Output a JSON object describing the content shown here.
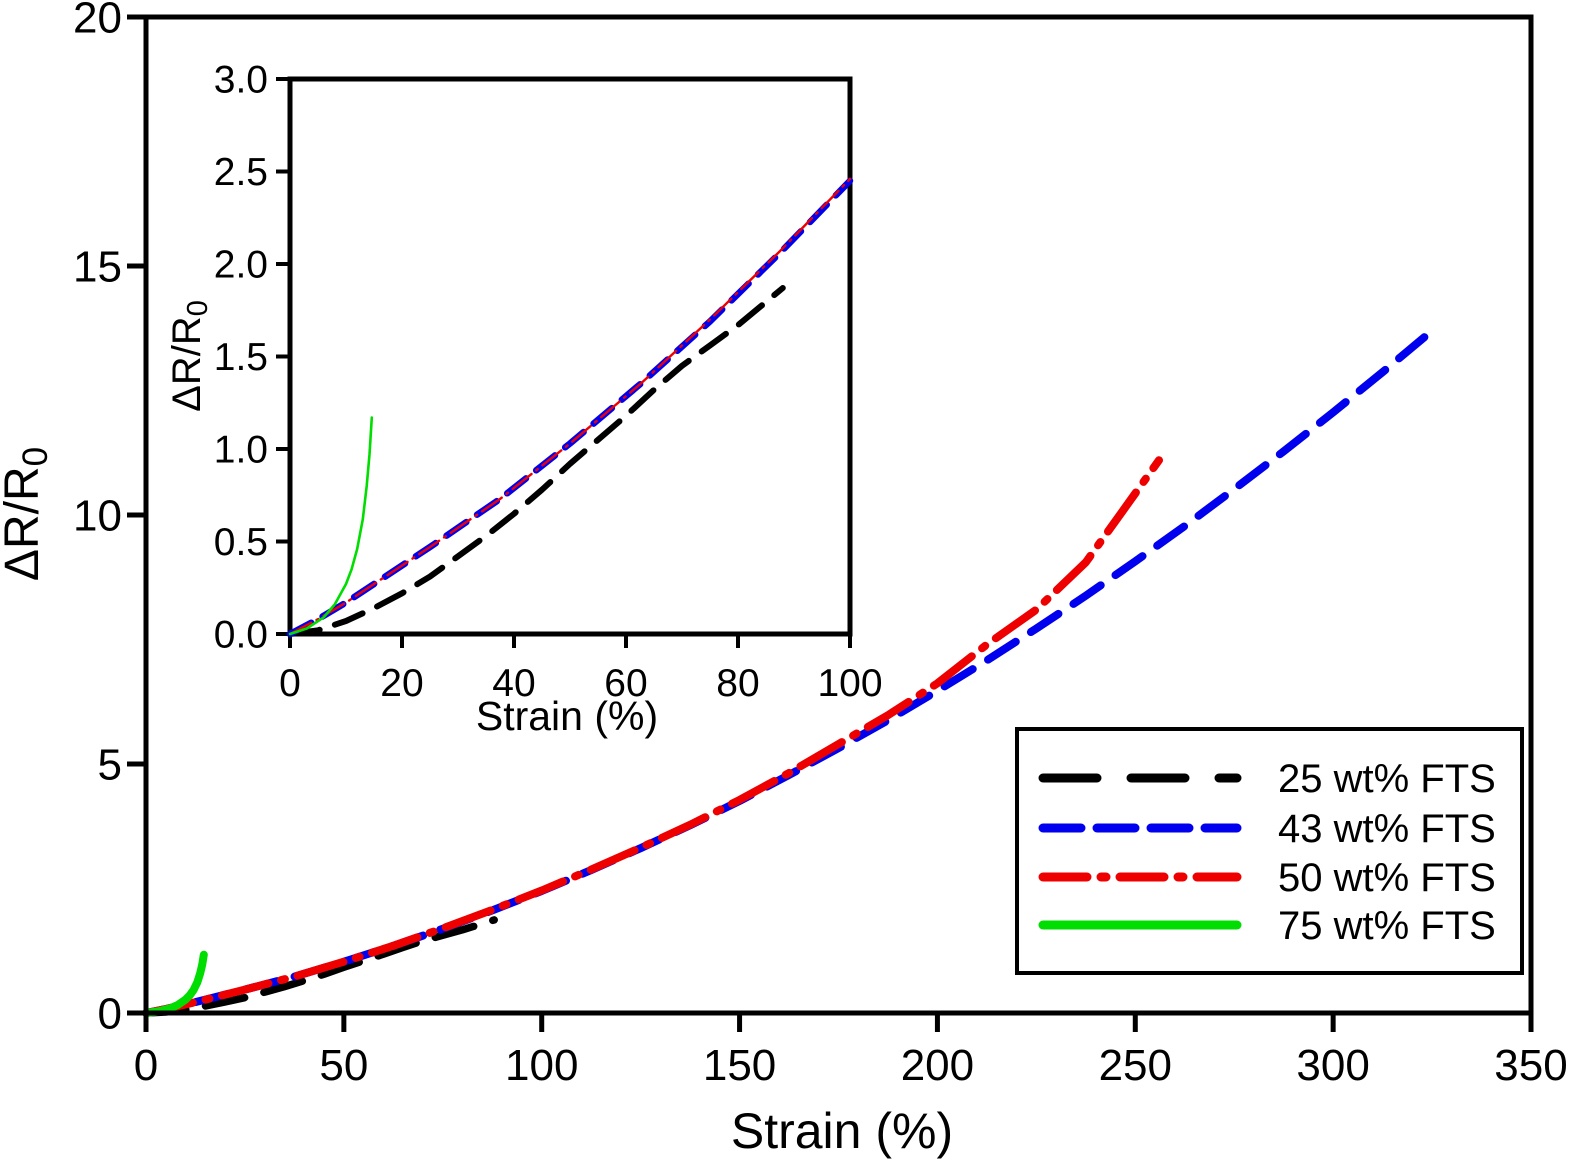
{
  "figure": {
    "background": "#ffffff",
    "axis_color": "#000000"
  },
  "legend": {
    "position": "lower right",
    "items": [
      {
        "label": "25 wt% FTS",
        "color": "#000000",
        "style": "longdash"
      },
      {
        "label": "43 wt% FTS",
        "color": "#0000ee",
        "style": "dash"
      },
      {
        "label": "50 wt% FTS",
        "color": "#ee0000",
        "style": "dashdot"
      },
      {
        "label": "75 wt% FTS",
        "color": "#00dd00",
        "style": "solid"
      }
    ]
  },
  "chart_data": {
    "type": "line",
    "title": "",
    "series": [
      {
        "name": "25 wt% FTS",
        "color": "#000000",
        "style": "longdash",
        "points": [
          [
            0,
            0
          ],
          [
            5,
            0.02
          ],
          [
            10,
            0.07
          ],
          [
            15,
            0.14
          ],
          [
            20,
            0.22
          ],
          [
            25,
            0.31
          ],
          [
            30,
            0.42
          ],
          [
            35,
            0.53
          ],
          [
            40,
            0.65
          ],
          [
            45,
            0.78
          ],
          [
            50,
            0.92
          ],
          [
            55,
            1.05
          ],
          [
            60,
            1.18
          ],
          [
            65,
            1.32
          ],
          [
            70,
            1.45
          ],
          [
            75,
            1.56
          ],
          [
            80,
            1.67
          ],
          [
            84,
            1.77
          ],
          [
            88,
            1.87
          ]
        ]
      },
      {
        "name": "43 wt% FTS",
        "color": "#0000ee",
        "style": "dash",
        "points": [
          [
            0,
            0
          ],
          [
            5,
            0.08
          ],
          [
            10,
            0.17
          ],
          [
            15,
            0.27
          ],
          [
            20,
            0.37
          ],
          [
            25,
            0.47
          ],
          [
            37.5,
            0.73
          ],
          [
            50,
            1.03
          ],
          [
            62.5,
            1.35
          ],
          [
            75,
            1.69
          ],
          [
            87.5,
            2.06
          ],
          [
            100,
            2.45
          ],
          [
            112.5,
            2.87
          ],
          [
            125,
            3.31
          ],
          [
            137.5,
            3.77
          ],
          [
            150,
            4.26
          ],
          [
            162.5,
            4.78
          ],
          [
            175,
            5.32
          ],
          [
            187.5,
            5.88
          ],
          [
            200,
            6.47
          ],
          [
            212.5,
            7.08
          ],
          [
            225,
            7.72
          ],
          [
            237.5,
            8.38
          ],
          [
            250,
            9.07
          ],
          [
            262.5,
            9.78
          ],
          [
            275,
            10.52
          ],
          [
            287.5,
            11.28
          ],
          [
            300,
            12.06
          ],
          [
            312.5,
            12.87
          ],
          [
            325,
            13.7
          ]
        ]
      },
      {
        "name": "50 wt% FTS",
        "color": "#ee0000",
        "style": "dashdot",
        "points": [
          [
            0,
            0
          ],
          [
            5,
            0.08
          ],
          [
            10,
            0.17
          ],
          [
            15,
            0.27
          ],
          [
            20,
            0.37
          ],
          [
            25,
            0.47
          ],
          [
            37.5,
            0.73
          ],
          [
            50,
            1.03
          ],
          [
            62.5,
            1.35
          ],
          [
            75,
            1.7
          ],
          [
            87.5,
            2.07
          ],
          [
            100,
            2.46
          ],
          [
            112.5,
            2.88
          ],
          [
            125,
            3.32
          ],
          [
            137.5,
            3.78
          ],
          [
            150,
            4.28
          ],
          [
            162.5,
            4.82
          ],
          [
            175,
            5.4
          ],
          [
            187.5,
            5.98
          ],
          [
            200,
            6.62
          ],
          [
            212.5,
            7.4
          ],
          [
            225,
            8.1
          ],
          [
            237.5,
            9.05
          ],
          [
            247,
            10.1
          ],
          [
            256,
            11.1
          ]
        ]
      },
      {
        "name": "75 wt% FTS",
        "color": "#00dd00",
        "style": "solid",
        "points": [
          [
            0,
            0
          ],
          [
            3,
            0.03
          ],
          [
            6,
            0.09
          ],
          [
            8,
            0.16
          ],
          [
            10,
            0.27
          ],
          [
            11,
            0.35
          ],
          [
            12,
            0.46
          ],
          [
            13,
            0.62
          ],
          [
            13.7,
            0.8
          ],
          [
            14.2,
            0.97
          ],
          [
            14.6,
            1.17
          ]
        ]
      }
    ],
    "views": [
      {
        "id": "main",
        "xlabel": "Strain (%)",
        "ylabel": "ΔR/R",
        "ylabel_sub": "0",
        "xlim": [
          0,
          350
        ],
        "ylim": [
          0,
          20
        ],
        "xticks": [
          {
            "v": 0,
            "t": "0"
          },
          {
            "v": 50,
            "t": "50"
          },
          {
            "v": 100,
            "t": "100"
          },
          {
            "v": 150,
            "t": "150"
          },
          {
            "v": 200,
            "t": "200"
          },
          {
            "v": 250,
            "t": "250"
          },
          {
            "v": 300,
            "t": "300"
          },
          {
            "v": 350,
            "t": "350"
          }
        ],
        "yticks": [
          {
            "v": 0,
            "t": "0"
          },
          {
            "v": 5,
            "t": "5"
          },
          {
            "v": 10,
            "t": "10"
          },
          {
            "v": 15,
            "t": "15"
          },
          {
            "v": 20,
            "t": "20"
          }
        ],
        "grid": false
      },
      {
        "id": "inset",
        "xlabel": "Strain (%)",
        "ylabel": "ΔR/R",
        "ylabel_sub": "0",
        "xlim": [
          0,
          100
        ],
        "ylim": [
          0,
          3
        ],
        "xticks": [
          {
            "v": 0,
            "t": "0"
          },
          {
            "v": 20,
            "t": "20"
          },
          {
            "v": 40,
            "t": "40"
          },
          {
            "v": 60,
            "t": "60"
          },
          {
            "v": 80,
            "t": "80"
          },
          {
            "v": 100,
            "t": "100"
          }
        ],
        "yticks": [
          {
            "v": 0,
            "t": "0.0"
          },
          {
            "v": 0.5,
            "t": "0.5"
          },
          {
            "v": 1,
            "t": "1.0"
          },
          {
            "v": 1.5,
            "t": "1.5"
          },
          {
            "v": 2,
            "t": "2.0"
          },
          {
            "v": 2.5,
            "t": "2.5"
          },
          {
            "v": 3,
            "t": "3.0"
          }
        ],
        "grid": false
      }
    ]
  }
}
